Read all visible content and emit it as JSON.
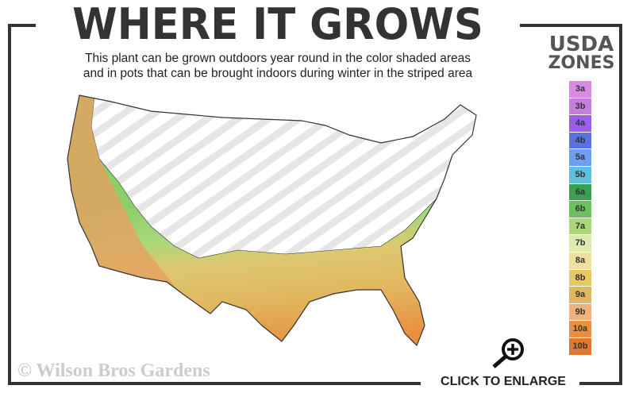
{
  "title": "WHERE IT GROWS",
  "subtitle_lines": [
    "This plant can be grown outdoors year round in the color shaded areas",
    "and in pots that can be brought indoors during winter in the striped area"
  ],
  "legend": {
    "title_line1": "USDA",
    "title_line2": "ZONES",
    "zones": [
      {
        "label": "3a",
        "color": "#d98be0"
      },
      {
        "label": "3b",
        "color": "#c47fd8"
      },
      {
        "label": "4a",
        "color": "#9a5ee8"
      },
      {
        "label": "4b",
        "color": "#5a72e0"
      },
      {
        "label": "5a",
        "color": "#6e9ef0"
      },
      {
        "label": "5b",
        "color": "#5fc0dc"
      },
      {
        "label": "6a",
        "color": "#3aa050"
      },
      {
        "label": "6b",
        "color": "#6cc060"
      },
      {
        "label": "7a",
        "color": "#a8d87a"
      },
      {
        "label": "7b",
        "color": "#dce9b0"
      },
      {
        "label": "8a",
        "color": "#efe0a0"
      },
      {
        "label": "8b",
        "color": "#e8c860"
      },
      {
        "label": "9a",
        "color": "#dcb860"
      },
      {
        "label": "9b",
        "color": "#f0b080"
      },
      {
        "label": "10a",
        "color": "#e89040"
      },
      {
        "label": "10b",
        "color": "#e07830"
      }
    ]
  },
  "watermark": "© Wilson Bros Gardens",
  "enlarge_label": "CLICK TO ENLARGE",
  "icons": {
    "enlarge": "magnifier-plus-icon"
  }
}
